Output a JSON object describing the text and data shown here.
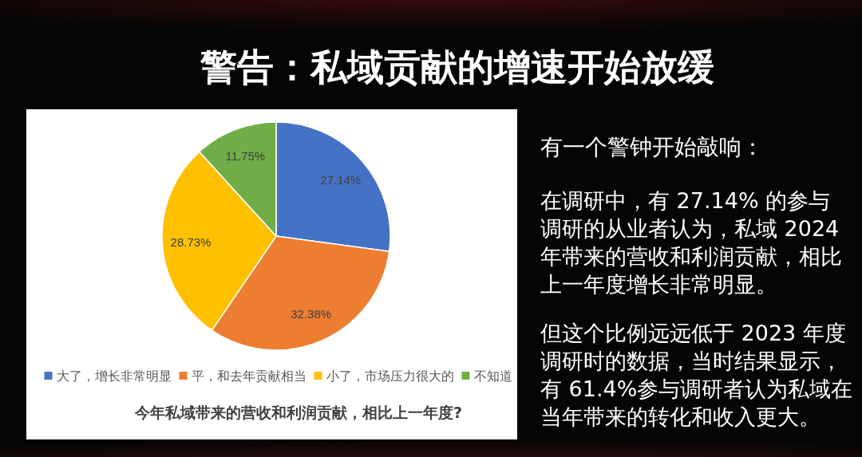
{
  "chart_data": {
    "type": "pie",
    "title": "警告：私域贡献的增速开始放缓",
    "categories": [
      "大了，增长非常明显",
      "平，和去年贡献相当",
      "小了，市场压力很大的",
      "不知道"
    ],
    "values": [
      27.14,
      32.38,
      28.73,
      11.75
    ],
    "value_labels": [
      "27.14%",
      "32.38%",
      "28.73%",
      "11.75%"
    ],
    "colors": [
      "#4472c4",
      "#ed7d31",
      "#ffc000",
      "#70ad47"
    ],
    "legend": "bottom",
    "annotations": [
      "今年私域带来的营收和利润贡献，相比上一年度?",
      "有一个警钟开始敲响：",
      "在调研中，有 27.14% 的参与调研的从业者认为，私域 2024 年带来的营收和利润贡献，相比上一年度增长非常明显。",
      "但这个比例远远低于 2023 年度调研时的数据，当时结果显示，有 61.4%参与调研者认为私域在当年带来的转化和收入更大。"
    ]
  }
}
